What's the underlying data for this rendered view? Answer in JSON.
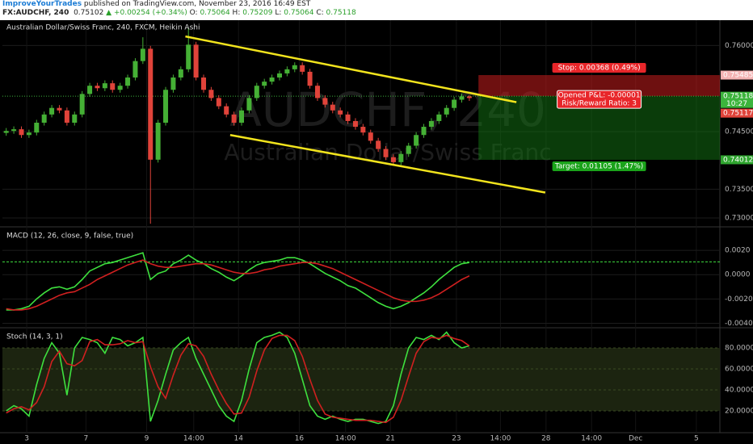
{
  "header": {
    "author": "ImproveYourTrades",
    "published": "published on TradingView.com, November 23, 2016 16:49 EST",
    "symbol": "FX:AUDCHF, 240",
    "last": "0.75102",
    "change": "▲ +0.00254 (+0.34%)",
    "o_label": "O:",
    "o": "0.75064",
    "h_label": "H:",
    "h": "0.75209",
    "l_label": "L:",
    "l": "0.75064",
    "c_label": "C:",
    "c": "0.75118"
  },
  "chart_data": [
    {
      "type": "candlestick",
      "title": "Australian Dollar/Swiss Franc, 240, FXCM, Heikin Ashi",
      "watermark": [
        "AUDCHF, 240",
        "Australian Dollar/Swiss Franc"
      ],
      "up_color": "#45b035",
      "down_color": "#e0433a",
      "ohlc": [
        [
          0.7448,
          0.74564,
          0.7443,
          0.74514
        ],
        [
          0.74514,
          0.74593,
          0.74464,
          0.74543
        ],
        [
          0.74543,
          0.74593,
          0.74393,
          0.74443
        ],
        [
          0.74443,
          0.74536,
          0.74393,
          0.74486
        ],
        [
          0.74486,
          0.74707,
          0.74436,
          0.74657
        ],
        [
          0.74657,
          0.7485,
          0.74607,
          0.748
        ],
        [
          0.748,
          0.74964,
          0.7475,
          0.74914
        ],
        [
          0.74914,
          0.74964,
          0.74821,
          0.74871
        ],
        [
          0.74871,
          0.74921,
          0.74607,
          0.74657
        ],
        [
          0.74657,
          0.7485,
          0.74607,
          0.748
        ],
        [
          0.748,
          0.75207,
          0.7475,
          0.75157
        ],
        [
          0.75157,
          0.7535,
          0.75107,
          0.753
        ],
        [
          0.753,
          0.7535,
          0.75207,
          0.75257
        ],
        [
          0.75257,
          0.75393,
          0.75207,
          0.75343
        ],
        [
          0.75343,
          0.75393,
          0.75179,
          0.75229
        ],
        [
          0.75229,
          0.7535,
          0.75179,
          0.753
        ],
        [
          0.753,
          0.75493,
          0.7525,
          0.75443
        ],
        [
          0.75443,
          0.75779,
          0.75393,
          0.75729
        ],
        [
          0.75729,
          0.76143,
          0.75679,
          0.75943
        ],
        [
          0.75943,
          0.75993,
          0.729,
          0.74014
        ],
        [
          0.74014,
          0.74707,
          0.73964,
          0.74657
        ],
        [
          0.74657,
          0.75279,
          0.74607,
          0.75229
        ],
        [
          0.75229,
          0.75493,
          0.75179,
          0.75443
        ],
        [
          0.75443,
          0.75636,
          0.75393,
          0.75586
        ],
        [
          0.75586,
          0.763,
          0.75536,
          0.76014
        ],
        [
          0.76014,
          0.76064,
          0.75393,
          0.75443
        ],
        [
          0.75443,
          0.75493,
          0.75179,
          0.75229
        ],
        [
          0.75229,
          0.75279,
          0.75036,
          0.75086
        ],
        [
          0.75086,
          0.75136,
          0.74893,
          0.74943
        ],
        [
          0.74943,
          0.74993,
          0.7475,
          0.748
        ],
        [
          0.748,
          0.7485,
          0.74607,
          0.74657
        ],
        [
          0.74657,
          0.74921,
          0.74607,
          0.74871
        ],
        [
          0.74871,
          0.75136,
          0.74821,
          0.75086
        ],
        [
          0.75086,
          0.7535,
          0.75036,
          0.753
        ],
        [
          0.753,
          0.75421,
          0.7525,
          0.75371
        ],
        [
          0.75371,
          0.75493,
          0.75321,
          0.75443
        ],
        [
          0.75443,
          0.75564,
          0.75393,
          0.75514
        ],
        [
          0.75514,
          0.75636,
          0.75464,
          0.75586
        ],
        [
          0.75586,
          0.75707,
          0.75536,
          0.75657
        ],
        [
          0.75657,
          0.75707,
          0.75493,
          0.75543
        ],
        [
          0.75543,
          0.75593,
          0.7525,
          0.753
        ],
        [
          0.753,
          0.7535,
          0.75036,
          0.75086
        ],
        [
          0.75086,
          0.75136,
          0.74921,
          0.74971
        ],
        [
          0.74971,
          0.75021,
          0.74821,
          0.74871
        ],
        [
          0.74871,
          0.74921,
          0.7475,
          0.748
        ],
        [
          0.748,
          0.7485,
          0.74636,
          0.74686
        ],
        [
          0.74686,
          0.74736,
          0.74536,
          0.74586
        ],
        [
          0.74586,
          0.74636,
          0.74436,
          0.74486
        ],
        [
          0.74486,
          0.74536,
          0.74293,
          0.74343
        ],
        [
          0.74343,
          0.74393,
          0.7415,
          0.742
        ],
        [
          0.742,
          0.7425,
          0.74007,
          0.74057
        ],
        [
          0.74057,
          0.74107,
          0.73921,
          0.73971
        ],
        [
          0.73971,
          0.74164,
          0.73921,
          0.74114
        ],
        [
          0.74114,
          0.74307,
          0.74064,
          0.74257
        ],
        [
          0.74257,
          0.74493,
          0.74207,
          0.74443
        ],
        [
          0.74443,
          0.74636,
          0.74393,
          0.74586
        ],
        [
          0.74586,
          0.74736,
          0.74536,
          0.74686
        ],
        [
          0.74686,
          0.7485,
          0.74636,
          0.748
        ],
        [
          0.748,
          0.74964,
          0.7475,
          0.74914
        ],
        [
          0.74914,
          0.75107,
          0.74864,
          0.75057
        ],
        [
          0.75057,
          0.75164,
          0.75007,
          0.75114
        ],
        [
          0.75114,
          0.75136,
          0.75036,
          0.75086
        ]
      ],
      "xlim": [
        -0.5,
        94
      ],
      "xticks": [
        {
          "value": 2.7,
          "label": "3"
        },
        {
          "value": 10.5,
          "label": "7"
        },
        {
          "value": 18.5,
          "label": "9"
        },
        {
          "value": 24.7,
          "label": "14:00"
        },
        {
          "value": 30.6,
          "label": "14"
        },
        {
          "value": 38.6,
          "label": "16"
        },
        {
          "value": 44.7,
          "label": "14:00"
        },
        {
          "value": 50.6,
          "label": "21"
        },
        {
          "value": 59.3,
          "label": "23"
        },
        {
          "value": 65.1,
          "label": "14:00"
        },
        {
          "value": 71.1,
          "label": "28"
        },
        {
          "value": 77.1,
          "label": "14:00"
        },
        {
          "value": 82.9,
          "label": "Dec"
        },
        {
          "value": 90.9,
          "label": "5"
        }
      ],
      "ylim": [
        0.7286,
        0.7644
      ],
      "yticks": [
        {
          "value": 0.76,
          "label": "0.76000"
        },
        {
          "value": 0.745,
          "label": "0.74500"
        },
        {
          "value": 0.735,
          "label": "0.73500"
        },
        {
          "value": 0.73,
          "label": "0.73000"
        }
      ],
      "grid": true,
      "trend_color": "#f2e41d",
      "trendlines": [
        {
          "x": [
            23.6,
            67.2
          ],
          "y": [
            0.76157,
            0.75014
          ]
        },
        {
          "x": [
            29.5,
            71.0
          ],
          "y": [
            0.74443,
            0.73443
          ]
        }
      ],
      "position": {
        "x_start": 62.2,
        "entry": 0.75118,
        "stop": 0.75485,
        "target": 0.74012,
        "stop_label": "Stop: 0.00368 (0.49%)",
        "pnl_label": "Opened P&L: -0.00001",
        "rr_label": "Risk/Reward Ratio: 3",
        "target_label": "Target: 0.01105 (1.47%)"
      },
      "markers": [
        {
          "value": 0.75485,
          "label": "0.75485",
          "color": "#f3b3b3"
        },
        {
          "value": 0.75118,
          "label": "0.75118",
          "sub": "10:27",
          "color": "#3cb43c",
          "line": true
        },
        {
          "value": 0.75117,
          "label": "0.75117",
          "color": "#e0433a"
        },
        {
          "value": 0.74012,
          "label": "0.74012",
          "color": "#2fa52f"
        }
      ]
    },
    {
      "type": "line",
      "title": "MACD (12, 26, close, 9, false, true)",
      "xlim": [
        -0.5,
        94
      ],
      "ylim": [
        -0.0043,
        0.0038
      ],
      "yticks": [
        {
          "value": 0.002,
          "label": "0.0020"
        },
        {
          "value": 0,
          "label": "0.0000"
        },
        {
          "value": -0.002,
          "label": "-0.0020"
        },
        {
          "value": -0.004,
          "label": "-0.0040"
        }
      ],
      "level": 0.00105,
      "level_color": "#3ee03e",
      "series": [
        {
          "color": "#3ee03e",
          "values": [
            -0.0029,
            -0.0029,
            -0.0028,
            -0.0026,
            -0.002,
            -0.0015,
            -0.0011,
            -0.001,
            -0.0012,
            -0.001,
            -0.0004,
            0.0003,
            0.0006,
            0.0009,
            0.001,
            0.0012,
            0.0014,
            0.0016,
            0.0018,
            -0.0004,
            0.0001,
            0.0003,
            0.0009,
            0.0012,
            0.0016,
            0.0012,
            0.0009,
            0.0005,
            0.0002,
            -0.0002,
            -0.0005,
            -0.0001,
            0.0004,
            0.0008,
            0.001,
            0.0011,
            0.0012,
            0.0014,
            0.0014,
            0.0012,
            0.0009,
            0.0005,
            0.0001,
            -0.0002,
            -0.0005,
            -0.0009,
            -0.0011,
            -0.0015,
            -0.0019,
            -0.0023,
            -0.0026,
            -0.0028,
            -0.0026,
            -0.0023,
            -0.0019,
            -0.0015,
            -0.001,
            -0.0004,
            0.0001,
            0.0006,
            0.0009,
            0.001
          ]
        },
        {
          "color": "#d02020",
          "values": [
            -0.0028,
            -0.0029,
            -0.0029,
            -0.0028,
            -0.0026,
            -0.0023,
            -0.002,
            -0.0017,
            -0.0015,
            -0.0014,
            -0.0011,
            -0.0008,
            -0.0004,
            -0.0001,
            0.0002,
            0.0005,
            0.0008,
            0.001,
            0.0012,
            0.0009,
            0.0007,
            0.0006,
            0.0006,
            0.0007,
            0.0008,
            0.0009,
            0.0009,
            0.0008,
            0.0006,
            0.0004,
            0.0002,
            0.0001,
            0.0001,
            0.0002,
            0.0004,
            0.0005,
            0.0007,
            0.0008,
            0.0009,
            0.001,
            0.001,
            0.0009,
            0.0007,
            0.0005,
            0.0002,
            -0.0001,
            -0.0004,
            -0.0007,
            -0.001,
            -0.0013,
            -0.0016,
            -0.0019,
            -0.0021,
            -0.0022,
            -0.0022,
            -0.0021,
            -0.0019,
            -0.0016,
            -0.0012,
            -0.0008,
            -0.0004,
            -0.0001
          ]
        }
      ]
    },
    {
      "type": "line",
      "title": "Stoch (14, 3, 1)",
      "xlim": [
        -0.5,
        94
      ],
      "ylim": [
        0,
        97.7
      ],
      "yticks": [
        {
          "value": 80,
          "label": "80.0000"
        },
        {
          "value": 60,
          "label": "60.0000"
        },
        {
          "value": 40,
          "label": "40.0000"
        },
        {
          "value": 20,
          "label": "20.0000"
        }
      ],
      "band": [
        20,
        80
      ],
      "band_color": "#1c2410",
      "series": [
        {
          "color": "#3ee03e",
          "values": [
            20,
            25,
            22,
            15,
            45,
            70,
            85,
            75,
            35,
            80,
            90,
            88,
            85,
            75,
            90,
            88,
            82,
            85,
            90,
            10,
            30,
            55,
            78,
            85,
            90,
            70,
            55,
            40,
            25,
            15,
            10,
            30,
            60,
            85,
            90,
            92,
            95,
            90,
            75,
            50,
            25,
            15,
            12,
            15,
            12,
            10,
            12,
            12,
            10,
            8,
            10,
            25,
            55,
            80,
            90,
            88,
            92,
            88,
            95,
            85,
            80,
            82
          ]
        },
        {
          "color": "#d02020",
          "values": [
            18,
            22,
            24,
            21,
            28,
            43,
            67,
            77,
            65,
            63,
            68,
            86,
            88,
            83,
            83,
            84,
            87,
            85,
            86,
            62,
            43,
            32,
            54,
            73,
            84,
            82,
            72,
            55,
            40,
            27,
            17,
            18,
            33,
            58,
            78,
            89,
            92,
            92,
            87,
            72,
            50,
            30,
            17,
            14,
            13,
            12,
            11,
            11,
            11,
            10,
            9,
            14,
            30,
            53,
            75,
            86,
            90,
            89,
            92,
            89,
            87,
            82
          ]
        }
      ]
    }
  ]
}
